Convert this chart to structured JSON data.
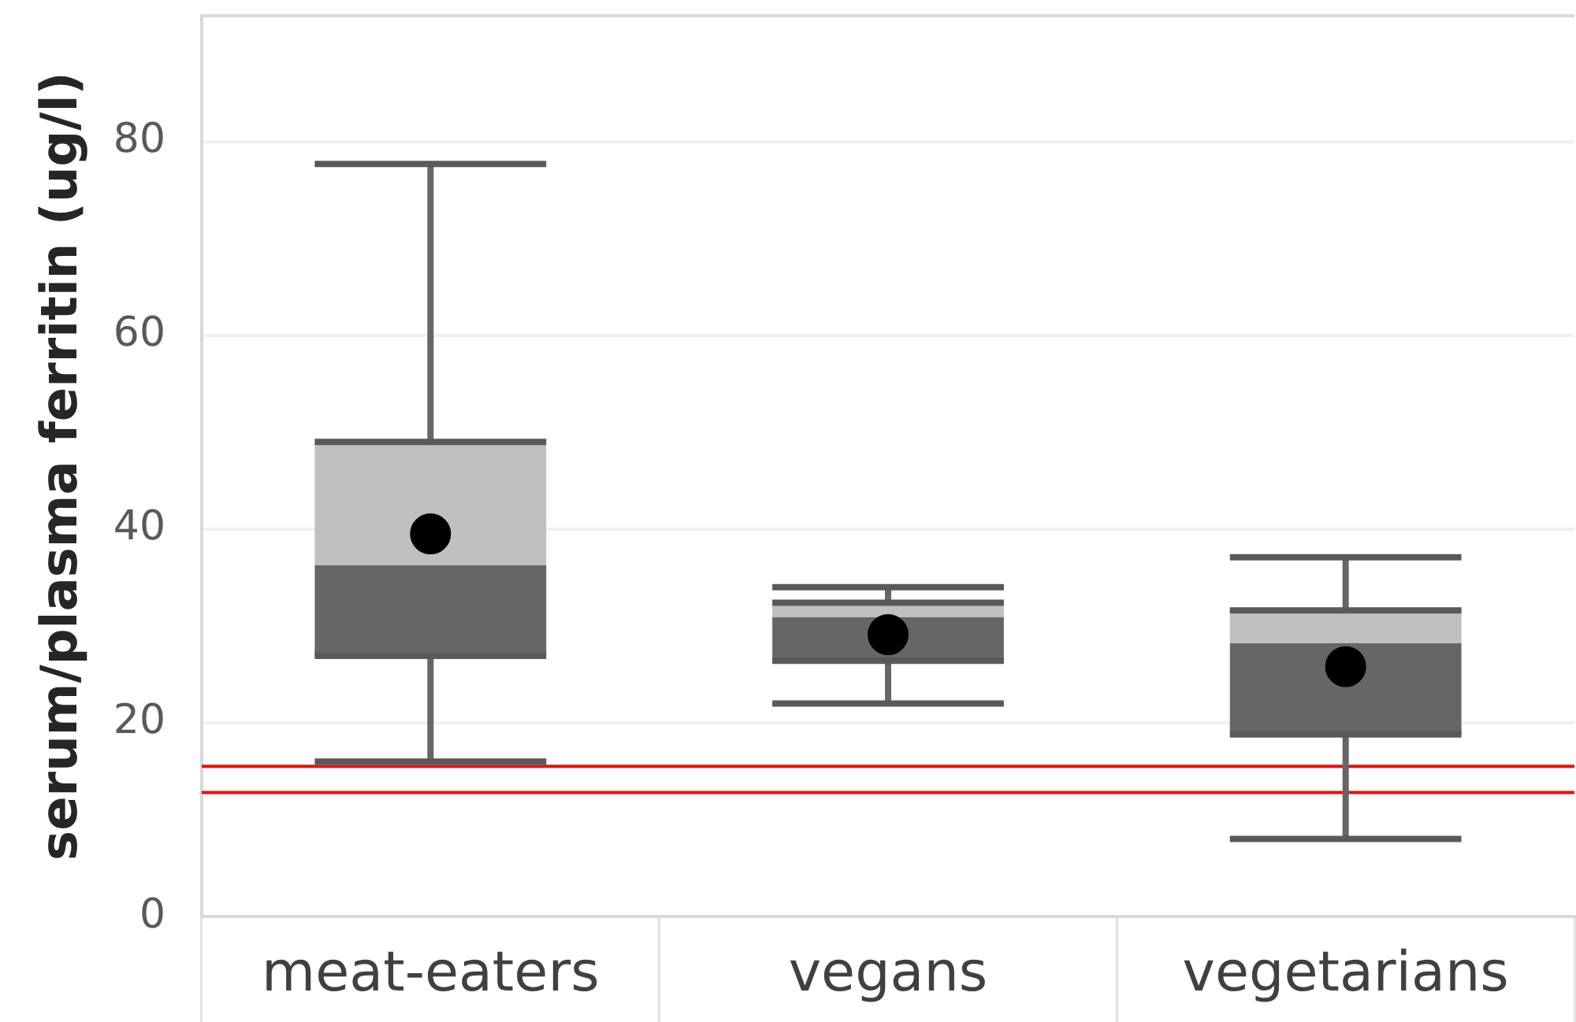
{
  "chart_data": {
    "type": "box",
    "ylabel": "serum/plasma ferritin (ug/l)",
    "categories": [
      "meat-eaters",
      "vegans",
      "vegetarians"
    ],
    "boxes": [
      {
        "low": 16,
        "q1": 26.9,
        "median": 36.3,
        "q3": 49,
        "high": 77.7,
        "mean": 39.5
      },
      {
        "low": 22,
        "q1": 26.4,
        "median": 30.9,
        "q3": 32.4,
        "high": 34,
        "mean": 29.1
      },
      {
        "low": 8,
        "q1": 18.8,
        "median": 28.2,
        "q3": 31.6,
        "high": 37.1,
        "mean": 25.8
      }
    ],
    "colors": [
      "#666666",
      "#666666",
      "#666666"
    ],
    "color": "#c0c0c0",
    "marker": "circle",
    "ylim": [
      0,
      93
    ],
    "yticks": [
      0,
      20,
      40,
      60,
      80
    ],
    "grid": "y",
    "ref_lines": [
      {
        "axis": "y",
        "value": 15.5,
        "color": "#ff0000"
      },
      {
        "axis": "y",
        "value": 12.8,
        "color": "#ff0000"
      }
    ]
  }
}
